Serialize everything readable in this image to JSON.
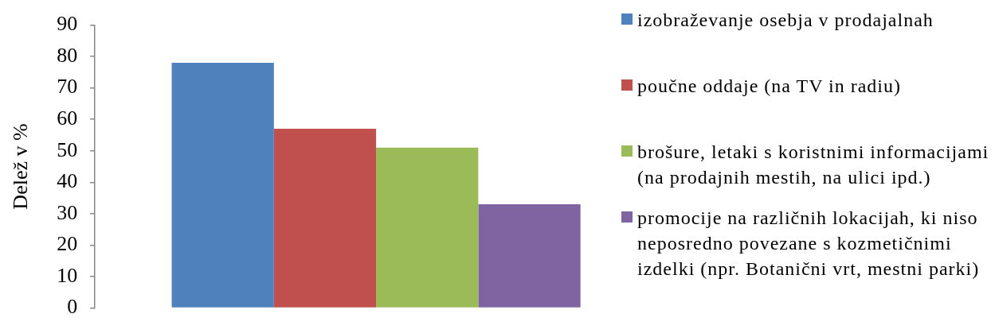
{
  "chart_data": {
    "type": "bar",
    "ylabel": "Delež v %",
    "categories": [
      null
    ],
    "series": [
      {
        "name": "izobraževanje osebja v prodajalnah",
        "color": "#4f81bd",
        "values": [
          78
        ]
      },
      {
        "name": "poučne oddaje (na TV in radiu)",
        "color": "#c0504d",
        "values": [
          57
        ]
      },
      {
        "name": "brošure, letaki s koristnimi informacijami (na prodajnih mestih, na ulici ipd.)",
        "color": "#9bbb59",
        "values": [
          51
        ]
      },
      {
        "name": "promocije na različnih lokacijah, ki niso neposredno povezane s kozmetičnimi izdelki (npr. Botanični vrt, mestni parki)",
        "color": "#8064a2",
        "values": [
          33
        ]
      }
    ],
    "ylim": [
      0,
      90
    ],
    "yticks": [
      0,
      10,
      20,
      30,
      40,
      50,
      60,
      70,
      80,
      90
    ],
    "grid": false,
    "legend": "right",
    "tick_labels": "y"
  }
}
